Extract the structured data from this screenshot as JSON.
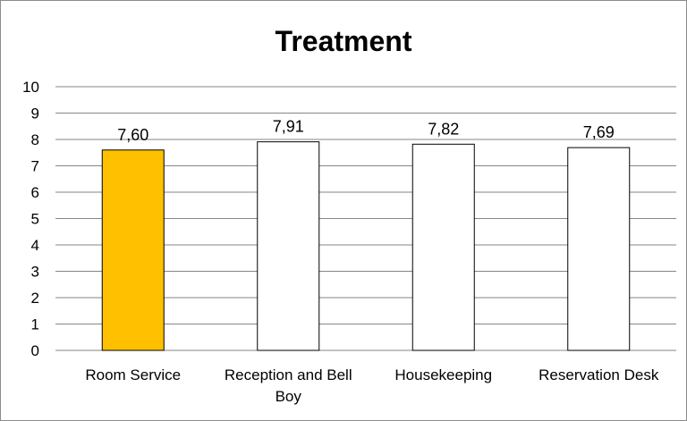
{
  "chart_data": {
    "type": "bar",
    "title": "Treatment",
    "categories": [
      "Room Service",
      "Reception and Bell Boy",
      "Housekeeping",
      "Reservation Desk"
    ],
    "category_lines": [
      [
        "Room Service"
      ],
      [
        "Reception and Bell",
        "Boy"
      ],
      [
        "Housekeeping"
      ],
      [
        "Reservation Desk"
      ]
    ],
    "values": [
      7.6,
      7.91,
      7.82,
      7.69
    ],
    "data_labels": [
      "7,60",
      "7,91",
      "7,82",
      "7,69"
    ],
    "ylim": [
      0,
      10
    ],
    "yticks": [
      "0",
      "1",
      "2",
      "3",
      "4",
      "5",
      "6",
      "7",
      "8",
      "9",
      "10"
    ],
    "grid": true,
    "xlabel": "",
    "ylabel": "",
    "colors": {
      "highlight": "#FFC000",
      "default": "#FFFFFF",
      "border": "#000000",
      "grid": "#868686"
    },
    "highlight_index": 0
  }
}
